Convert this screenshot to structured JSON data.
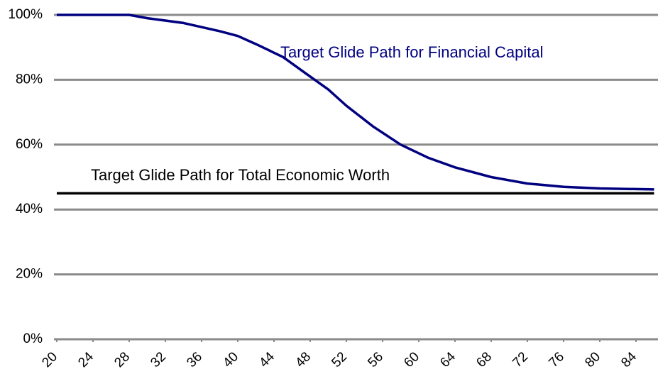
{
  "chart_data": {
    "type": "line",
    "x": [
      20,
      24,
      28,
      30,
      34,
      38,
      40,
      42,
      45,
      47.5,
      50,
      52,
      55,
      58,
      61,
      64,
      68,
      72,
      76,
      80,
      86
    ],
    "series": [
      {
        "name": "Target Glide Path for Financial Capital",
        "color": "#000080",
        "values": [
          100,
          100,
          100,
          99,
          97.5,
          95,
          93.5,
          91,
          87,
          82,
          77,
          72,
          65.5,
          60,
          56,
          53,
          50,
          48,
          47,
          46.5,
          46.2
        ]
      },
      {
        "name": "Target Glide Path for Total Economic Worth",
        "color": "#000000",
        "values": [
          45,
          45,
          45,
          45,
          45,
          45,
          45,
          45,
          45,
          45,
          45,
          45,
          45,
          45,
          45,
          45,
          45,
          45,
          45,
          45,
          45
        ]
      }
    ],
    "xlim": [
      20,
      86
    ],
    "xticks": [
      20,
      24,
      28,
      32,
      36,
      40,
      44,
      48,
      52,
      56,
      60,
      64,
      68,
      72,
      76,
      80,
      84
    ],
    "ylim": [
      0,
      100
    ],
    "yticks": [
      {
        "value": 0,
        "label": "0%"
      },
      {
        "value": 20,
        "label": "20%"
      },
      {
        "value": 40,
        "label": "40%"
      },
      {
        "value": 60,
        "label": "60%"
      },
      {
        "value": 80,
        "label": "80%"
      },
      {
        "value": 100,
        "label": "100%"
      }
    ],
    "grid": true
  }
}
